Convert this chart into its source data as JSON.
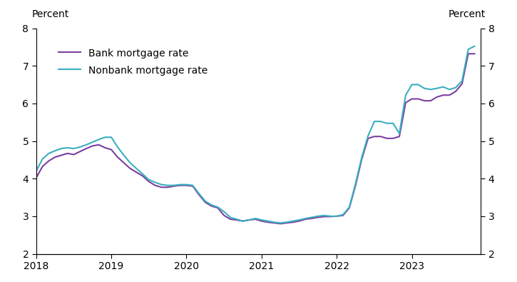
{
  "ylabel_left": "Percent",
  "ylabel_right": "Percent",
  "ylim": [
    2,
    8
  ],
  "yticks": [
    2,
    3,
    4,
    5,
    6,
    7,
    8
  ],
  "bank_color": "#7B3FA0",
  "nonbank_color": "#3AAFBE",
  "legend_labels": [
    "Bank mortgage rate",
    "Nonbank mortgage rate"
  ],
  "bank_data": {
    "dates": [
      2018.0,
      2018.083,
      2018.167,
      2018.25,
      2018.333,
      2018.417,
      2018.5,
      2018.583,
      2018.667,
      2018.75,
      2018.833,
      2018.917,
      2019.0,
      2019.083,
      2019.167,
      2019.25,
      2019.333,
      2019.417,
      2019.5,
      2019.583,
      2019.667,
      2019.75,
      2019.833,
      2019.917,
      2020.0,
      2020.083,
      2020.167,
      2020.25,
      2020.333,
      2020.417,
      2020.5,
      2020.583,
      2020.667,
      2020.75,
      2020.833,
      2020.917,
      2021.0,
      2021.083,
      2021.167,
      2021.25,
      2021.333,
      2021.417,
      2021.5,
      2021.583,
      2021.667,
      2021.75,
      2021.833,
      2021.917,
      2022.0,
      2022.083,
      2022.167,
      2022.25,
      2022.333,
      2022.417,
      2022.5,
      2022.583,
      2022.667,
      2022.75,
      2022.833,
      2022.917,
      2023.0,
      2023.083,
      2023.167,
      2023.25,
      2023.333,
      2023.417,
      2023.5,
      2023.583,
      2023.667,
      2023.75,
      2023.833
    ],
    "values": [
      4.02,
      4.32,
      4.47,
      4.57,
      4.62,
      4.67,
      4.64,
      4.72,
      4.8,
      4.87,
      4.9,
      4.82,
      4.77,
      4.57,
      4.42,
      4.27,
      4.17,
      4.07,
      3.92,
      3.82,
      3.77,
      3.77,
      3.8,
      3.82,
      3.82,
      3.8,
      3.57,
      3.37,
      3.27,
      3.22,
      3.02,
      2.92,
      2.9,
      2.87,
      2.9,
      2.92,
      2.87,
      2.84,
      2.82,
      2.8,
      2.82,
      2.84,
      2.87,
      2.92,
      2.94,
      2.97,
      2.99,
      2.99,
      3.0,
      3.02,
      3.22,
      3.82,
      4.52,
      5.07,
      5.12,
      5.12,
      5.07,
      5.07,
      5.12,
      6.02,
      6.12,
      6.12,
      6.07,
      6.07,
      6.17,
      6.22,
      6.22,
      6.32,
      6.52,
      7.32,
      7.32
    ]
  },
  "nonbank_data": {
    "dates": [
      2018.0,
      2018.083,
      2018.167,
      2018.25,
      2018.333,
      2018.417,
      2018.5,
      2018.583,
      2018.667,
      2018.75,
      2018.833,
      2018.917,
      2019.0,
      2019.083,
      2019.167,
      2019.25,
      2019.333,
      2019.417,
      2019.5,
      2019.583,
      2019.667,
      2019.75,
      2019.833,
      2019.917,
      2020.0,
      2020.083,
      2020.167,
      2020.25,
      2020.333,
      2020.417,
      2020.5,
      2020.583,
      2020.667,
      2020.75,
      2020.833,
      2020.917,
      2021.0,
      2021.083,
      2021.167,
      2021.25,
      2021.333,
      2021.417,
      2021.5,
      2021.583,
      2021.667,
      2021.75,
      2021.833,
      2021.917,
      2022.0,
      2022.083,
      2022.167,
      2022.25,
      2022.333,
      2022.417,
      2022.5,
      2022.583,
      2022.667,
      2022.75,
      2022.833,
      2022.917,
      2023.0,
      2023.083,
      2023.167,
      2023.25,
      2023.333,
      2023.417,
      2023.5,
      2023.583,
      2023.667,
      2023.75,
      2023.833
    ],
    "values": [
      4.2,
      4.52,
      4.67,
      4.74,
      4.8,
      4.82,
      4.8,
      4.84,
      4.9,
      4.97,
      5.04,
      5.1,
      5.1,
      4.84,
      4.62,
      4.42,
      4.27,
      4.12,
      3.97,
      3.9,
      3.84,
      3.82,
      3.82,
      3.84,
      3.84,
      3.82,
      3.6,
      3.4,
      3.3,
      3.24,
      3.12,
      2.97,
      2.92,
      2.87,
      2.9,
      2.94,
      2.9,
      2.87,
      2.84,
      2.82,
      2.84,
      2.87,
      2.9,
      2.94,
      2.97,
      3.0,
      3.02,
      3.0,
      3.0,
      3.04,
      3.24,
      3.87,
      4.57,
      5.14,
      5.52,
      5.52,
      5.47,
      5.47,
      5.2,
      6.22,
      6.5,
      6.5,
      6.4,
      6.37,
      6.4,
      6.44,
      6.37,
      6.42,
      6.6,
      7.44,
      7.52
    ]
  },
  "xticks": [
    2018,
    2019,
    2020,
    2021,
    2022,
    2023
  ],
  "xlim": [
    2018.0,
    2023.917
  ]
}
